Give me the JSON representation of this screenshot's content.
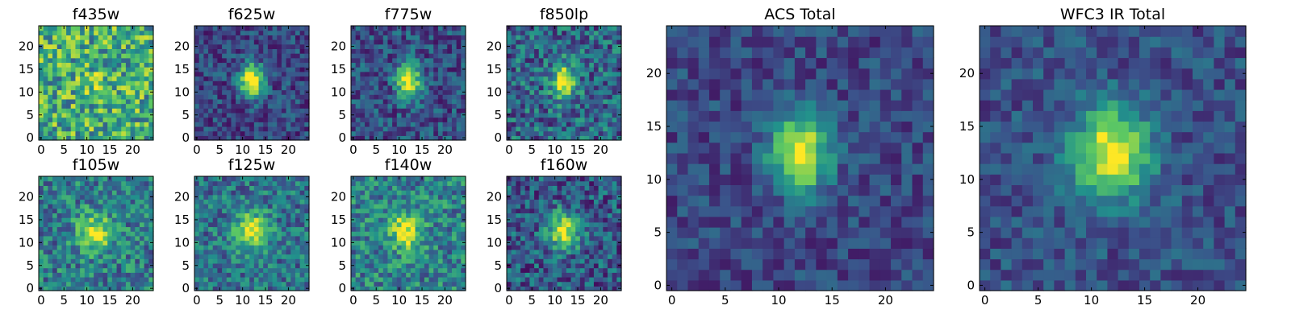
{
  "colormap": [
    "#440154",
    "#3b528b",
    "#21918c",
    "#5ec962",
    "#fde725"
  ],
  "chart_data": [
    {
      "type": "heatmap",
      "title": "f435w",
      "xticks": [
        "0",
        "5",
        "10",
        "15",
        "20"
      ],
      "yticks": [
        "0",
        "5",
        "10",
        "15",
        "20"
      ],
      "xlim": [
        -0.5,
        24.5
      ],
      "ylim": [
        -0.5,
        24.5
      ],
      "grid_size": [
        25,
        25
      ],
      "source": {
        "cx": 12.5,
        "cy": 12.0,
        "sx": 2.2,
        "sy": 1.8,
        "amp": 0.15,
        "base": 0.62,
        "noise": 0.32,
        "seed": 11
      }
    },
    {
      "type": "heatmap",
      "title": "f625w",
      "xticks": [
        "0",
        "5",
        "10",
        "15",
        "20"
      ],
      "yticks": [
        "0",
        "5",
        "10",
        "15",
        "20"
      ],
      "xlim": [
        -0.5,
        24.5
      ],
      "ylim": [
        -0.5,
        24.5
      ],
      "grid_size": [
        25,
        25
      ],
      "source": {
        "cx": 12.0,
        "cy": 12.5,
        "sx": 1.8,
        "sy": 2.6,
        "amp": 0.85,
        "base": 0.22,
        "noise": 0.18,
        "seed": 21
      }
    },
    {
      "type": "heatmap",
      "title": "f775w",
      "xticks": [
        "0",
        "5",
        "10",
        "15",
        "20"
      ],
      "yticks": [
        "0",
        "5",
        "10",
        "15",
        "20"
      ],
      "xlim": [
        -0.5,
        24.5
      ],
      "ylim": [
        -0.5,
        24.5
      ],
      "grid_size": [
        25,
        25
      ],
      "source": {
        "cx": 12.0,
        "cy": 12.5,
        "sx": 1.8,
        "sy": 2.6,
        "amp": 0.8,
        "base": 0.25,
        "noise": 0.2,
        "seed": 31
      }
    },
    {
      "type": "heatmap",
      "title": "f850lp",
      "xticks": [
        "0",
        "5",
        "10",
        "15",
        "20"
      ],
      "yticks": [
        "0",
        "5",
        "10",
        "15",
        "20"
      ],
      "xlim": [
        -0.5,
        24.5
      ],
      "ylim": [
        -0.5,
        24.5
      ],
      "grid_size": [
        25,
        25
      ],
      "source": {
        "cx": 12.0,
        "cy": 12.5,
        "sx": 1.8,
        "sy": 2.6,
        "amp": 0.7,
        "base": 0.33,
        "noise": 0.25,
        "seed": 41
      }
    },
    {
      "type": "heatmap",
      "title": "f105w",
      "xticks": [
        "0",
        "5",
        "10",
        "15",
        "20"
      ],
      "yticks": [
        "0",
        "5",
        "10",
        "15",
        "20"
      ],
      "xlim": [
        -0.5,
        24.5
      ],
      "ylim": [
        -0.5,
        24.5
      ],
      "grid_size": [
        25,
        25
      ],
      "source": {
        "cx": 12.0,
        "cy": 12.0,
        "sx": 2.6,
        "sy": 2.8,
        "amp": 0.55,
        "base": 0.42,
        "noise": 0.24,
        "seed": 51
      }
    },
    {
      "type": "heatmap",
      "title": "f125w",
      "xticks": [
        "0",
        "5",
        "10",
        "15",
        "20"
      ],
      "yticks": [
        "0",
        "5",
        "10",
        "15",
        "20"
      ],
      "xlim": [
        -0.5,
        24.5
      ],
      "ylim": [
        -0.5,
        24.5
      ],
      "grid_size": [
        25,
        25
      ],
      "source": {
        "cx": 12.0,
        "cy": 12.5,
        "sx": 2.6,
        "sy": 2.8,
        "amp": 0.6,
        "base": 0.38,
        "noise": 0.22,
        "seed": 61
      }
    },
    {
      "type": "heatmap",
      "title": "f140w",
      "xticks": [
        "0",
        "5",
        "10",
        "15",
        "20"
      ],
      "yticks": [
        "0",
        "5",
        "10",
        "15",
        "20"
      ],
      "xlim": [
        -0.5,
        24.5
      ],
      "ylim": [
        -0.5,
        24.5
      ],
      "grid_size": [
        25,
        25
      ],
      "source": {
        "cx": 11.5,
        "cy": 12.5,
        "sx": 2.4,
        "sy": 2.8,
        "amp": 0.55,
        "base": 0.44,
        "noise": 0.24,
        "seed": 71
      }
    },
    {
      "type": "heatmap",
      "title": "f160w",
      "xticks": [
        "0",
        "5",
        "10",
        "15",
        "20"
      ],
      "yticks": [
        "0",
        "5",
        "10",
        "15",
        "20"
      ],
      "xlim": [
        -0.5,
        24.5
      ],
      "ylim": [
        -0.5,
        24.5
      ],
      "grid_size": [
        25,
        25
      ],
      "source": {
        "cx": 12.0,
        "cy": 12.5,
        "sx": 2.4,
        "sy": 2.8,
        "amp": 0.7,
        "base": 0.28,
        "noise": 0.24,
        "seed": 81
      }
    },
    {
      "type": "heatmap",
      "title": "ACS Total",
      "xticks": [
        "0",
        "5",
        "10",
        "15",
        "20"
      ],
      "yticks": [
        "0",
        "5",
        "10",
        "15",
        "20"
      ],
      "xlim": [
        -0.5,
        24.5
      ],
      "ylim": [
        -0.5,
        24.5
      ],
      "grid_size": [
        25,
        25
      ],
      "source": {
        "cx": 12.0,
        "cy": 12.5,
        "sx": 1.9,
        "sy": 2.5,
        "amp": 0.8,
        "base": 0.22,
        "noise": 0.14,
        "seed": 91
      }
    },
    {
      "type": "heatmap",
      "title": "WFC3 IR Total",
      "xticks": [
        "0",
        "5",
        "10",
        "15",
        "20"
      ],
      "yticks": [
        "0",
        "5",
        "10",
        "15",
        "20"
      ],
      "xlim": [
        -0.5,
        24.5
      ],
      "ylim": [
        -0.5,
        24.5
      ],
      "grid_size": [
        25,
        25
      ],
      "source": {
        "cx": 12.0,
        "cy": 12.5,
        "sx": 2.5,
        "sy": 2.9,
        "amp": 0.78,
        "base": 0.25,
        "noise": 0.14,
        "seed": 101
      }
    }
  ]
}
